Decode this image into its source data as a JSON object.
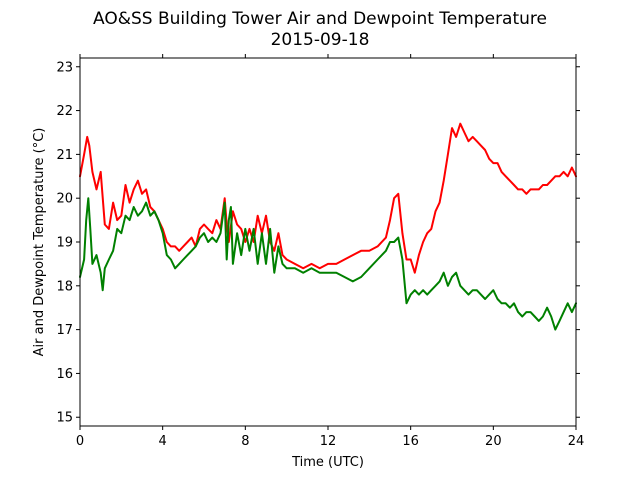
{
  "chart_data": {
    "type": "line",
    "title": "AO&SS Building Tower Air and Dewpoint Temperature",
    "subtitle": "2015-09-18",
    "xlabel": "Time (UTC)",
    "ylabel": "Air and Dewpoint Temperature (°C)",
    "xlim": [
      0,
      24
    ],
    "ylim": [
      14.8,
      23.2
    ],
    "xticks": [
      0,
      4,
      8,
      12,
      16,
      20,
      24
    ],
    "yticks": [
      15,
      16,
      17,
      18,
      19,
      20,
      21,
      22,
      23
    ],
    "grid": false,
    "legend": "none",
    "series": [
      {
        "color": "#ff0000",
        "x": [
          0,
          0.2,
          0.35,
          0.45,
          0.6,
          0.8,
          1.0,
          1.2,
          1.4,
          1.6,
          1.8,
          2.0,
          2.2,
          2.4,
          2.6,
          2.8,
          3.0,
          3.2,
          3.4,
          3.6,
          3.8,
          4.0,
          4.2,
          4.4,
          4.6,
          4.8,
          5.0,
          5.2,
          5.4,
          5.6,
          5.8,
          6.0,
          6.2,
          6.4,
          6.6,
          6.8,
          7.0,
          7.1,
          7.2,
          7.4,
          7.6,
          7.8,
          8.0,
          8.2,
          8.4,
          8.6,
          8.8,
          9.0,
          9.2,
          9.4,
          9.6,
          9.8,
          10.0,
          10.4,
          10.8,
          11.2,
          11.6,
          12.0,
          12.4,
          12.8,
          13.2,
          13.6,
          14.0,
          14.4,
          14.8,
          15.0,
          15.2,
          15.4,
          15.6,
          15.8,
          16.0,
          16.2,
          16.4,
          16.6,
          16.8,
          17.0,
          17.2,
          17.4,
          17.6,
          17.8,
          18.0,
          18.2,
          18.4,
          18.6,
          18.8,
          19.0,
          19.2,
          19.4,
          19.6,
          19.8,
          20.0,
          20.2,
          20.4,
          20.6,
          20.8,
          21.0,
          21.2,
          21.4,
          21.6,
          21.8,
          22.0,
          22.2,
          22.4,
          22.6,
          22.8,
          23.0,
          23.2,
          23.4,
          23.6,
          23.8,
          24.0
        ],
        "y": [
          20.5,
          21.0,
          21.4,
          21.2,
          20.6,
          20.2,
          20.6,
          19.4,
          19.3,
          19.9,
          19.5,
          19.6,
          20.3,
          19.9,
          20.2,
          20.4,
          20.1,
          20.2,
          19.8,
          19.7,
          19.5,
          19.3,
          19.0,
          18.9,
          18.9,
          18.8,
          18.9,
          19.0,
          19.1,
          18.9,
          19.3,
          19.4,
          19.3,
          19.2,
          19.5,
          19.3,
          20.0,
          19.4,
          19.0,
          19.7,
          19.4,
          19.3,
          19.0,
          19.3,
          19.0,
          19.6,
          19.2,
          19.6,
          19.0,
          18.8,
          19.2,
          18.7,
          18.6,
          18.5,
          18.4,
          18.5,
          18.4,
          18.5,
          18.5,
          18.6,
          18.7,
          18.8,
          18.8,
          18.9,
          19.1,
          19.5,
          20.0,
          20.1,
          19.2,
          18.6,
          18.6,
          18.3,
          18.7,
          19.0,
          19.2,
          19.3,
          19.7,
          19.9,
          20.4,
          21.0,
          21.6,
          21.4,
          21.7,
          21.5,
          21.3,
          21.4,
          21.3,
          21.2,
          21.1,
          20.9,
          20.8,
          20.8,
          20.6,
          20.5,
          20.4,
          20.3,
          20.2,
          20.2,
          20.1,
          20.2,
          20.2,
          20.2,
          20.3,
          20.3,
          20.4,
          20.5,
          20.5,
          20.6,
          20.5,
          20.7,
          20.5
        ]
      },
      {
        "color": "#008000",
        "x": [
          0,
          0.2,
          0.3,
          0.4,
          0.5,
          0.6,
          0.8,
          1.0,
          1.1,
          1.2,
          1.4,
          1.6,
          1.8,
          2.0,
          2.2,
          2.4,
          2.6,
          2.8,
          3.0,
          3.2,
          3.4,
          3.6,
          3.8,
          4.0,
          4.2,
          4.4,
          4.6,
          4.8,
          5.0,
          5.2,
          5.4,
          5.6,
          5.8,
          6.0,
          6.2,
          6.4,
          6.6,
          6.8,
          7.0,
          7.1,
          7.2,
          7.3,
          7.4,
          7.6,
          7.8,
          8.0,
          8.2,
          8.4,
          8.6,
          8.8,
          9.0,
          9.2,
          9.4,
          9.6,
          9.8,
          10.0,
          10.4,
          10.8,
          11.2,
          11.6,
          12.0,
          12.4,
          12.8,
          13.2,
          13.6,
          14.0,
          14.4,
          14.8,
          15.0,
          15.2,
          15.4,
          15.6,
          15.8,
          16.0,
          16.2,
          16.4,
          16.6,
          16.8,
          17.0,
          17.2,
          17.4,
          17.6,
          17.8,
          18.0,
          18.2,
          18.4,
          18.6,
          18.8,
          19.0,
          19.2,
          19.4,
          19.6,
          19.8,
          20.0,
          20.2,
          20.4,
          20.6,
          20.8,
          21.0,
          21.2,
          21.4,
          21.6,
          21.8,
          22.0,
          22.2,
          22.4,
          22.6,
          22.8,
          23.0,
          23.2,
          23.4,
          23.6,
          23.8,
          24.0
        ],
        "y": [
          18.2,
          18.6,
          19.5,
          20.0,
          19.3,
          18.5,
          18.7,
          18.3,
          17.9,
          18.4,
          18.6,
          18.8,
          19.3,
          19.2,
          19.6,
          19.5,
          19.8,
          19.6,
          19.7,
          19.9,
          19.6,
          19.7,
          19.5,
          19.2,
          18.7,
          18.6,
          18.4,
          18.5,
          18.6,
          18.7,
          18.8,
          18.9,
          19.1,
          19.2,
          19.0,
          19.1,
          19.0,
          19.2,
          19.9,
          18.6,
          19.5,
          19.8,
          18.5,
          19.2,
          18.7,
          19.3,
          18.8,
          19.3,
          18.5,
          19.2,
          18.5,
          19.3,
          18.3,
          18.9,
          18.5,
          18.4,
          18.4,
          18.3,
          18.4,
          18.3,
          18.3,
          18.3,
          18.2,
          18.1,
          18.2,
          18.4,
          18.6,
          18.8,
          19.0,
          19.0,
          19.1,
          18.6,
          17.6,
          17.8,
          17.9,
          17.8,
          17.9,
          17.8,
          17.9,
          18.0,
          18.1,
          18.3,
          18.0,
          18.2,
          18.3,
          18.0,
          17.9,
          17.8,
          17.9,
          17.9,
          17.8,
          17.7,
          17.8,
          17.9,
          17.7,
          17.6,
          17.6,
          17.5,
          17.6,
          17.4,
          17.3,
          17.4,
          17.4,
          17.3,
          17.2,
          17.3,
          17.5,
          17.3,
          17.0,
          17.2,
          17.4,
          17.6,
          17.4,
          17.6
        ]
      }
    ]
  }
}
